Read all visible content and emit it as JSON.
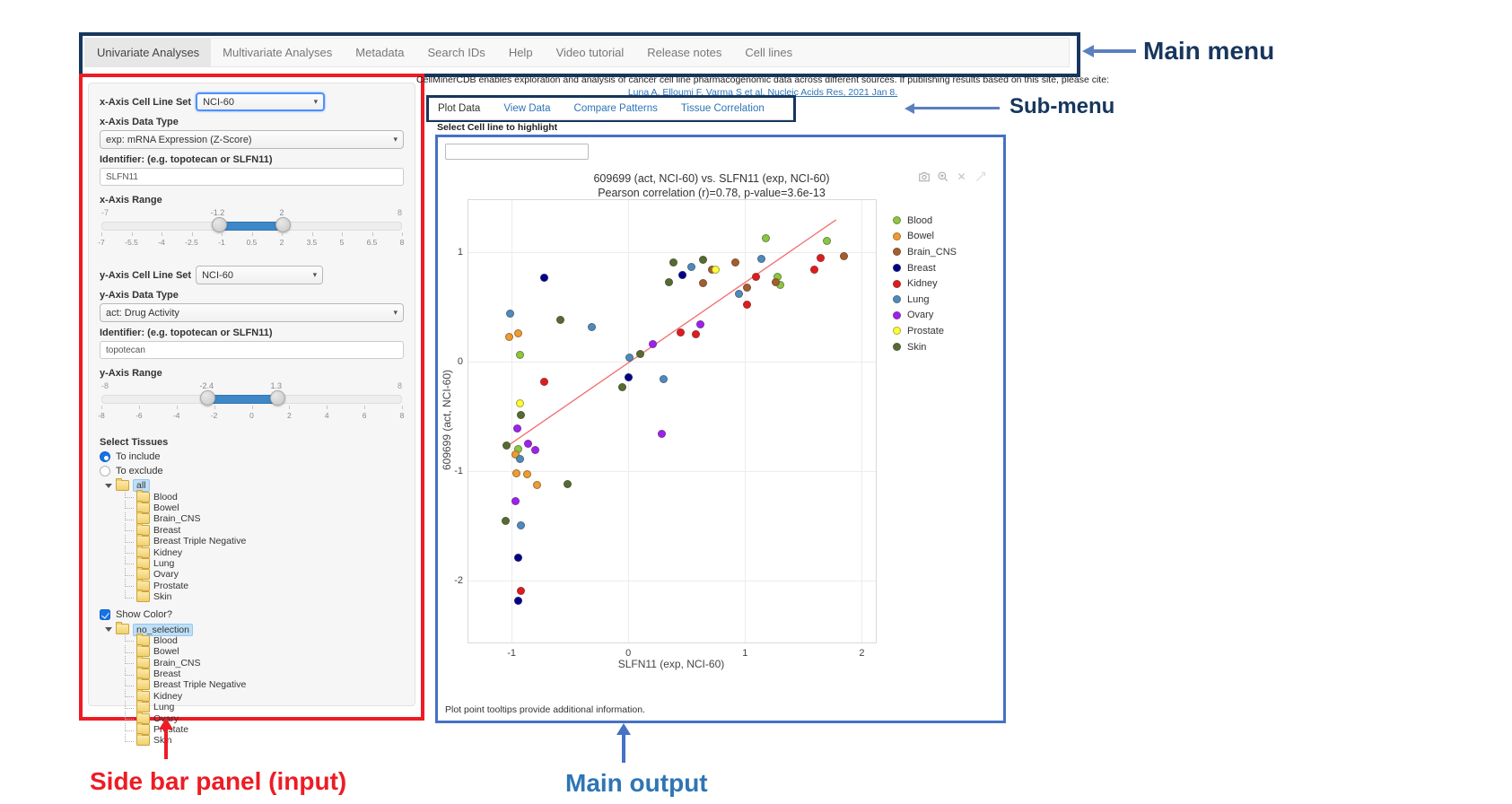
{
  "annotations": {
    "main_menu": "Main menu",
    "submenu": "Sub-menu",
    "sidebar": "Side bar panel (input)",
    "main_output": "Main output",
    "navy": "#17365D",
    "blue": "#2E75B6",
    "red": "#ED1C24",
    "arrow_blue": "#5B7FBF"
  },
  "main_menu": {
    "items": [
      {
        "label": "Univariate Analyses",
        "active": true
      },
      {
        "label": "Multivariate Analyses",
        "active": false
      },
      {
        "label": "Metadata",
        "active": false
      },
      {
        "label": "Search IDs",
        "active": false
      },
      {
        "label": "Help",
        "active": false
      },
      {
        "label": "Video tutorial",
        "active": false
      },
      {
        "label": "Release notes",
        "active": false
      },
      {
        "label": "Cell lines",
        "active": false
      }
    ]
  },
  "sidebar": {
    "x_axis": {
      "cell_line_label": "x-Axis Cell Line Set",
      "cell_line_value": "NCI-60",
      "data_type_label": "x-Axis Data Type",
      "data_type_value": "exp: mRNA Expression (Z-Score)",
      "identifier_label": "Identifier: (e.g. topotecan or SLFN11)",
      "identifier_value": "SLFN11",
      "range_label": "x-Axis Range",
      "range": {
        "min": -7,
        "max": 8,
        "from": -1.2,
        "to": 2,
        "min_label": "-7",
        "max_label": "8",
        "from_label": "-1.2",
        "to_label": "2",
        "scale": [
          -7,
          -5.5,
          -4,
          -2.5,
          -1,
          0.5,
          2,
          3.5,
          5,
          6.5,
          8
        ]
      }
    },
    "y_axis": {
      "cell_line_label": "y-Axis Cell Line Set",
      "cell_line_value": "NCI-60",
      "data_type_label": "y-Axis Data Type",
      "data_type_value": "act: Drug Activity",
      "identifier_label": "Identifier: (e.g. topotecan or SLFN11)",
      "identifier_value": "topotecan",
      "range_label": "y-Axis Range",
      "range": {
        "min": -8,
        "max": 8,
        "from": -2.4,
        "to": 1.3,
        "min_label": "-8",
        "max_label": "8",
        "from_label": "-2.4",
        "to_label": "1.3",
        "scale": [
          -8,
          -6,
          -4,
          -2,
          0,
          2,
          4,
          6,
          8
        ]
      }
    },
    "tissues": {
      "label": "Select Tissues",
      "include_label": "To include",
      "exclude_label": "To exclude",
      "include_selected": true
    },
    "tissue_tree": {
      "root": "all",
      "children": [
        "Blood",
        "Bowel",
        "Brain_CNS",
        "Breast",
        "Breast Triple Negative",
        "Kidney",
        "Lung",
        "Ovary",
        "Prostate",
        "Skin"
      ]
    },
    "show_color_label": "Show Color?",
    "show_color_checked": true,
    "color_tree": {
      "root": "no_selection",
      "children": [
        "Blood",
        "Bowel",
        "Brain_CNS",
        "Breast",
        "Breast Triple Negative",
        "Kidney",
        "Lung",
        "Ovary",
        "Prostate",
        "Skin"
      ]
    },
    "folder_icon": "folder-icon"
  },
  "main": {
    "intro": "CellMinerCDB enables exploration and analysis of cancer cell line pharmacogenomic data across different sources. If publishing results based on this site, please cite:",
    "citation": "Luna A, Elloumi F, Varma S et al. Nucleic Acids Res, 2021 Jan 8.",
    "submenu": [
      {
        "label": "Plot Data",
        "active": true
      },
      {
        "label": "View Data",
        "active": false
      },
      {
        "label": "Compare Patterns",
        "active": false
      },
      {
        "label": "Tissue Correlation",
        "active": false
      }
    ],
    "highlight_label": "Select Cell line to highlight",
    "highlight_value": "",
    "footnote": "Plot point tooltips provide additional information.",
    "modebar_icons": [
      "camera-icon",
      "zoom-in-icon",
      "close-icon",
      "autoscale-icon"
    ]
  },
  "chart_data": {
    "type": "scatter",
    "title": "609699 (act, NCI-60) vs. SLFN11 (exp, NCI-60)",
    "subtitle": "Pearson correlation (r)=0.78, p-value=3.6e-13",
    "xlabel": "SLFN11 (exp, NCI-60)",
    "ylabel": "609699 (act, NCI-60)",
    "xlim": [
      -1.37,
      2.12
    ],
    "ylim": [
      -2.57,
      1.48
    ],
    "xticks": [
      -1,
      0,
      1,
      2
    ],
    "yticks": [
      -2,
      -1,
      0,
      1
    ],
    "grid": true,
    "legend_position": "right",
    "regression_line": {
      "x1": -1.02,
      "y1": -0.76,
      "x2": 1.78,
      "y2": 1.3,
      "color": "#f46d6d"
    },
    "series": [
      {
        "name": "Blood",
        "color": "#8CC63F",
        "points": [
          [
            -0.93,
            0.06
          ],
          [
            -0.94,
            -0.8
          ],
          [
            1.18,
            1.13
          ],
          [
            1.28,
            0.78
          ],
          [
            1.3,
            0.7
          ],
          [
            1.7,
            1.11
          ]
        ]
      },
      {
        "name": "Bowel",
        "color": "#EF9B2D",
        "points": [
          [
            -1.02,
            0.23
          ],
          [
            -0.94,
            0.26
          ],
          [
            -0.97,
            -0.85
          ],
          [
            -0.96,
            -1.02
          ],
          [
            -0.87,
            -1.03
          ],
          [
            -0.78,
            -1.13
          ]
        ]
      },
      {
        "name": "Brain_CNS",
        "color": "#A65D2B",
        "points": [
          [
            0.64,
            0.72
          ],
          [
            0.72,
            0.84
          ],
          [
            0.92,
            0.91
          ],
          [
            1.02,
            0.68
          ],
          [
            1.26,
            0.73
          ],
          [
            1.85,
            0.97
          ]
        ]
      },
      {
        "name": "Breast",
        "color": "#00008B",
        "points": [
          [
            -0.72,
            0.77
          ],
          [
            0.0,
            -0.14
          ],
          [
            0.46,
            0.79
          ],
          [
            -0.94,
            -1.79
          ],
          [
            -0.94,
            -2.19
          ]
        ]
      },
      {
        "name": "Kidney",
        "color": "#E31A1C",
        "points": [
          [
            -0.72,
            -0.18
          ],
          [
            0.45,
            0.27
          ],
          [
            0.58,
            0.25
          ],
          [
            1.02,
            0.52
          ],
          [
            1.09,
            0.78
          ],
          [
            1.59,
            0.84
          ],
          [
            1.65,
            0.95
          ],
          [
            -0.92,
            -2.1
          ]
        ]
      },
      {
        "name": "Lung",
        "color": "#4E8ABE",
        "points": [
          [
            -1.01,
            0.44
          ],
          [
            -0.31,
            0.32
          ],
          [
            0.01,
            0.04
          ],
          [
            0.3,
            -0.16
          ],
          [
            0.54,
            0.87
          ],
          [
            0.95,
            0.62
          ],
          [
            1.14,
            0.94
          ],
          [
            -0.93,
            -0.89
          ],
          [
            -0.92,
            -1.5
          ]
        ]
      },
      {
        "name": "Ovary",
        "color": "#A020F0",
        "points": [
          [
            0.21,
            0.16
          ],
          [
            0.62,
            0.34
          ],
          [
            -0.95,
            -0.61
          ],
          [
            -0.86,
            -0.75
          ],
          [
            -0.8,
            -0.81
          ],
          [
            -0.97,
            -1.28
          ],
          [
            0.29,
            -0.66
          ]
        ]
      },
      {
        "name": "Prostate",
        "color": "#FFFF33",
        "points": [
          [
            0.75,
            0.84
          ],
          [
            -0.93,
            -0.38
          ]
        ]
      },
      {
        "name": "Skin",
        "color": "#556B2F",
        "points": [
          [
            -0.58,
            0.38
          ],
          [
            0.1,
            0.07
          ],
          [
            -0.05,
            -0.23
          ],
          [
            0.35,
            0.73
          ],
          [
            0.39,
            0.91
          ],
          [
            0.64,
            0.93
          ],
          [
            -0.92,
            -0.49
          ],
          [
            -1.04,
            -0.77
          ],
          [
            -0.52,
            -1.12
          ],
          [
            -1.05,
            -1.46
          ]
        ]
      }
    ]
  }
}
